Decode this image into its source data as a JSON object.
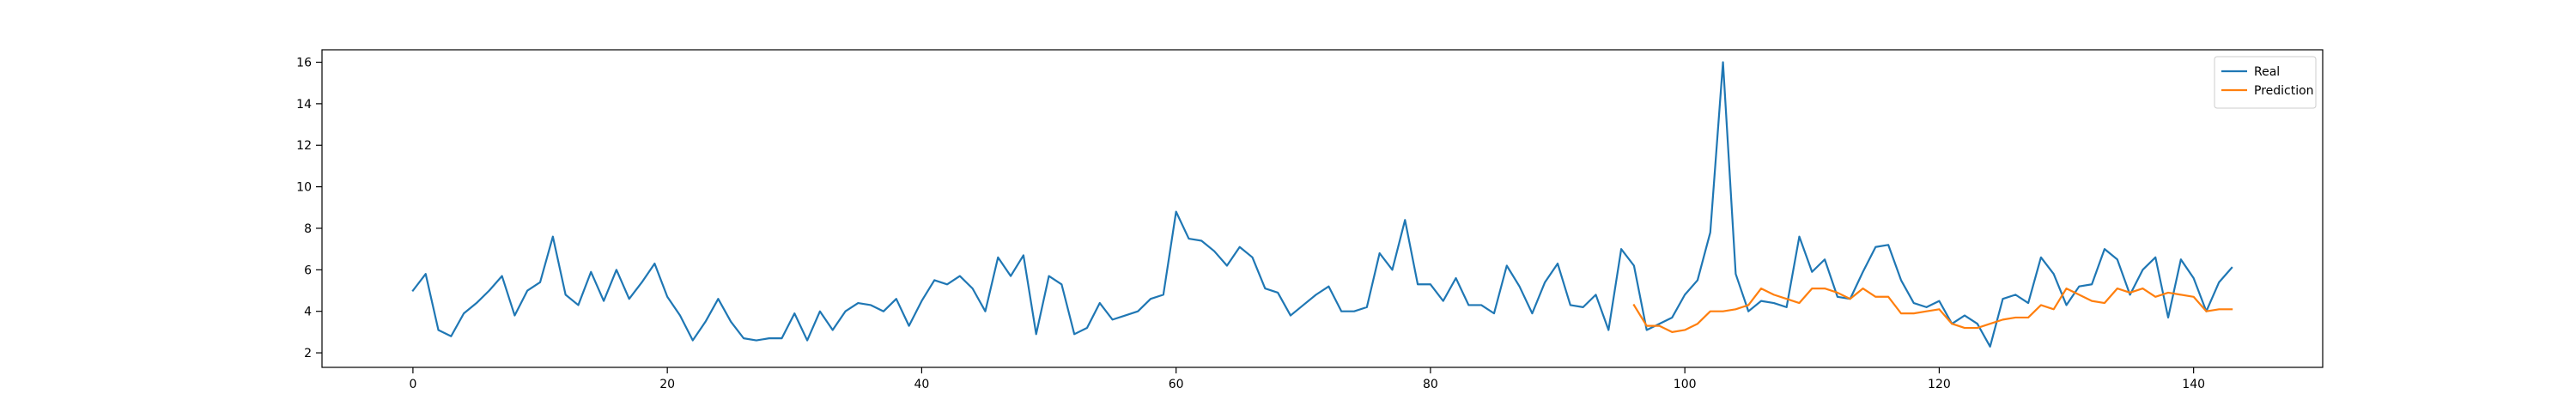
{
  "chart_data": {
    "type": "line",
    "title": "",
    "xlabel": "",
    "ylabel": "",
    "xlim": [
      -7.15,
      150.15
    ],
    "ylim": [
      1.3,
      16.6
    ],
    "x_ticks": [
      0,
      20,
      40,
      60,
      80,
      100,
      120,
      140
    ],
    "y_ticks": [
      2,
      4,
      6,
      8,
      10,
      12,
      14,
      16
    ],
    "x_tick_labels": [
      "0",
      "20",
      "40",
      "60",
      "80",
      "100",
      "120",
      "140"
    ],
    "y_tick_labels": [
      "2",
      "4",
      "6",
      "8",
      "10",
      "12",
      "14",
      "16"
    ],
    "grid": false,
    "legend_position": "top-right",
    "series": [
      {
        "name": "Real",
        "color": "#1f77b4",
        "x_start": 0,
        "values": [
          5.0,
          5.8,
          3.1,
          2.8,
          3.9,
          4.4,
          5.0,
          5.7,
          3.8,
          5.0,
          5.4,
          7.6,
          4.8,
          4.3,
          5.9,
          4.5,
          6.0,
          4.6,
          5.4,
          6.3,
          4.7,
          3.8,
          2.6,
          3.5,
          4.6,
          3.5,
          2.7,
          2.6,
          2.7,
          2.7,
          3.9,
          2.6,
          4.0,
          3.1,
          4.0,
          4.4,
          4.3,
          4.0,
          4.6,
          3.3,
          4.5,
          5.5,
          5.3,
          5.7,
          5.1,
          4.0,
          6.6,
          5.7,
          6.7,
          2.9,
          5.7,
          5.3,
          2.9,
          3.2,
          4.4,
          3.6,
          3.8,
          4.0,
          4.6,
          4.8,
          8.8,
          7.5,
          7.4,
          6.9,
          6.2,
          7.1,
          6.6,
          5.1,
          4.9,
          3.8,
          4.3,
          4.8,
          5.2,
          4.0,
          4.0,
          4.2,
          6.8,
          6.0,
          8.4,
          5.3,
          5.3,
          4.5,
          5.6,
          4.3,
          4.3,
          3.9,
          6.2,
          5.2,
          3.9,
          5.4,
          6.3,
          4.3,
          4.2,
          4.8,
          3.1,
          7.0,
          6.2,
          3.1,
          3.4,
          3.7,
          4.8,
          5.5,
          7.8,
          16.0,
          5.8,
          4.0,
          4.5,
          4.4,
          4.2,
          7.6,
          5.9,
          6.5,
          4.7,
          4.6,
          5.9,
          7.1,
          7.2,
          5.5,
          4.4,
          4.2,
          4.5,
          3.4,
          3.8,
          3.4,
          2.3,
          4.6,
          4.8,
          4.4,
          6.6,
          5.8,
          4.3,
          5.2,
          5.3,
          7.0,
          6.5,
          4.8,
          6.0,
          6.6,
          3.7,
          6.5,
          5.6,
          4.0,
          5.4,
          6.1
        ]
      },
      {
        "name": "Prediction",
        "color": "#ff7f0e",
        "x_start": 96,
        "values": [
          4.3,
          3.3,
          3.3,
          3.0,
          3.1,
          3.4,
          4.0,
          4.0,
          4.1,
          4.3,
          5.1,
          4.8,
          4.6,
          4.4,
          5.1,
          5.1,
          4.9,
          4.6,
          5.1,
          4.7,
          4.7,
          3.9,
          3.9,
          4.0,
          4.1,
          3.4,
          3.2,
          3.2,
          3.4,
          3.6,
          3.7,
          3.7,
          4.3,
          4.1,
          5.1,
          4.8,
          4.5,
          4.4,
          5.1,
          4.9,
          5.1,
          4.7,
          4.9,
          4.8,
          4.7,
          4.0,
          4.1,
          4.1
        ]
      }
    ]
  }
}
